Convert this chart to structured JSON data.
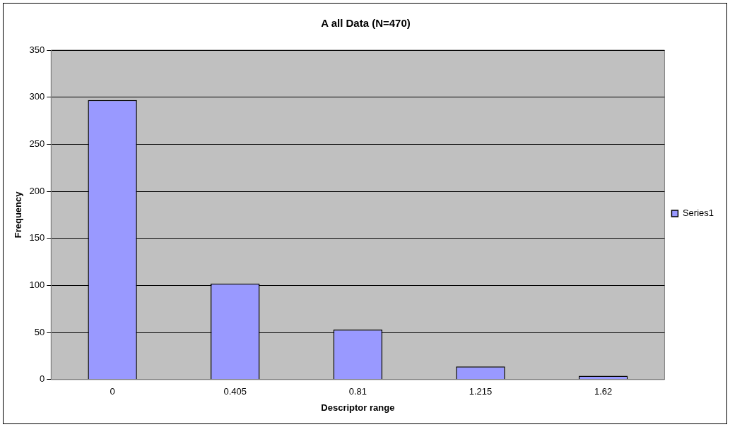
{
  "chart_data": {
    "type": "bar",
    "title": "A all Data (N=470)",
    "xlabel": "Descriptor range",
    "ylabel": "Frequency",
    "categories": [
      "0",
      "0.405",
      "0.81",
      "1.215",
      "1.62"
    ],
    "series": [
      {
        "name": "Series1",
        "color": "#9999ff",
        "values": [
          297,
          102,
          53,
          14,
          4
        ]
      }
    ],
    "ylim": [
      0,
      350
    ],
    "yticks": [
      0,
      50,
      100,
      150,
      200,
      250,
      300,
      350
    ],
    "grid": "y",
    "legend": "right"
  }
}
